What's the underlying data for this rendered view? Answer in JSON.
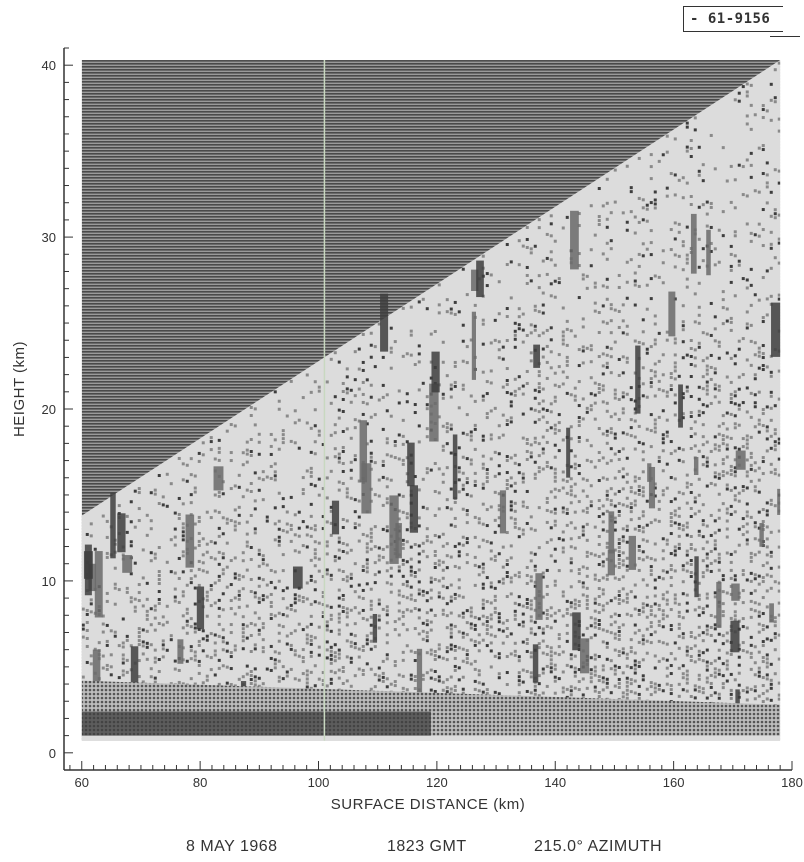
{
  "figure_tag": "- 61-9156",
  "footer": {
    "date": "8 MAY 1968",
    "time": "1823 GMT",
    "azimuth": "215.0° AZIMUTH"
  },
  "colors": {
    "hatch": "#4a4a4a",
    "background_field": "#dcdcdc",
    "echo_light": "#8a8a8a",
    "echo_dark": "#3e3e3e",
    "axis": "#333333"
  },
  "chart_data": {
    "type": "heatmap",
    "title": "",
    "xlabel": "SURFACE DISTANCE (km)",
    "ylabel": "HEIGHT (km)",
    "xlim": [
      57,
      180
    ],
    "ylim": [
      -1,
      41
    ],
    "x_ticks": [
      60,
      80,
      100,
      120,
      140,
      160,
      180
    ],
    "y_ticks": [
      0,
      10,
      20,
      30,
      40
    ],
    "data_region": {
      "x": [
        60,
        178
      ],
      "y": [
        0.7,
        40.3
      ]
    },
    "beam_upper_boundary": [
      {
        "x": 60,
        "y": 13.8
      },
      {
        "x": 178,
        "y": 40.3
      }
    ],
    "low_level_echo_band": {
      "y_bottom": 1.0,
      "y_top": [
        4.2,
        2.8
      ]
    },
    "grid": false,
    "legend": "none"
  }
}
